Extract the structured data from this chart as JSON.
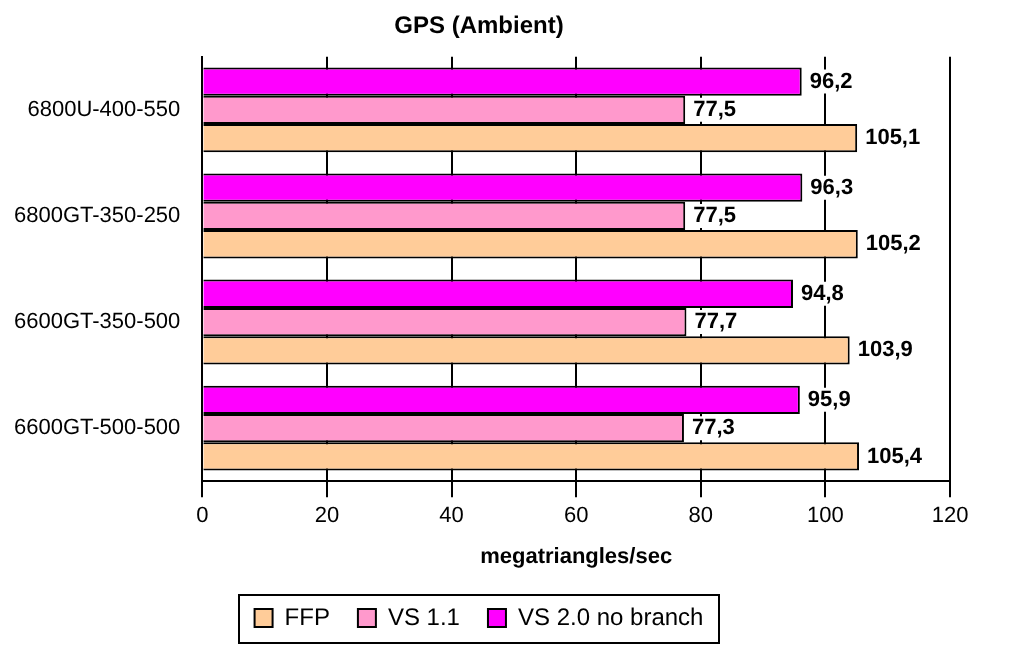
{
  "chart_data": {
    "type": "bar",
    "orientation": "horizontal",
    "title": "GPS (Ambient)",
    "xlabel": "megatriangles/sec",
    "categories": [
      "6800U-400-550",
      "6800GT-350-250",
      "6600GT-350-500",
      "6600GT-500-500"
    ],
    "series": [
      {
        "name": "FFP",
        "color": "#ffcc99",
        "values": [
          105.1,
          105.2,
          103.9,
          105.4
        ],
        "value_labels": [
          "105,1",
          "105,2",
          "103,9",
          "105,4"
        ]
      },
      {
        "name": "VS 1.1",
        "color": "#ff99cc",
        "values": [
          77.5,
          77.5,
          77.7,
          77.3
        ],
        "value_labels": [
          "77,5",
          "77,5",
          "77,7",
          "77,3"
        ]
      },
      {
        "name": "VS 2.0 no branch",
        "color": "#ff00ff",
        "values": [
          96.2,
          96.3,
          94.8,
          95.9
        ],
        "value_labels": [
          "96,2",
          "96,3",
          "94,8",
          "95,9"
        ]
      }
    ],
    "xlim": [
      0,
      120
    ],
    "xticks": [
      0,
      20,
      40,
      60,
      80,
      100,
      120
    ],
    "grid": "x",
    "legend": "bottom"
  }
}
